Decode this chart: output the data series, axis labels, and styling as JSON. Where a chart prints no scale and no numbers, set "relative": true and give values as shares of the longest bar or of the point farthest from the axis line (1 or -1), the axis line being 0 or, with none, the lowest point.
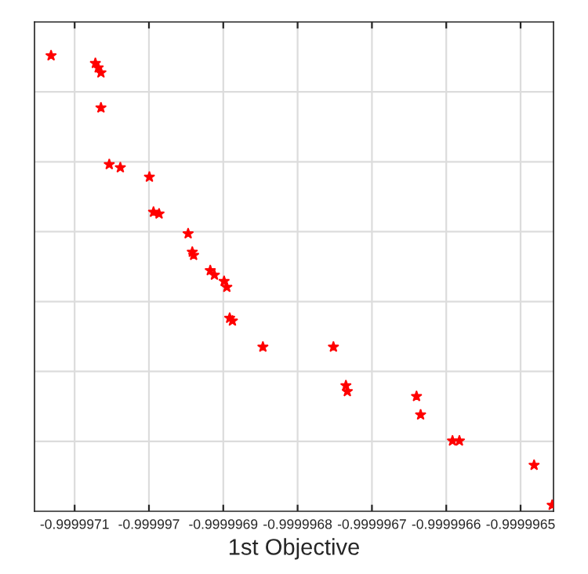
{
  "chart_data": {
    "type": "scatter",
    "xlabel": "1st Objective",
    "relative": true,
    "grid": true,
    "marker": "star",
    "xlim": [
      -0.999997154,
      -0.9999964557
    ],
    "xticks": [
      -0.9999971,
      -0.999997,
      -0.9999969,
      -0.9999968,
      -0.9999967,
      -0.9999966,
      -0.9999965
    ],
    "series": [
      {
        "color": "#ff0000",
        "x": [
          -0.9999971317,
          -0.9999970721,
          -0.9999970683,
          -0.9999970646,
          -0.9999970646,
          -0.9999970534,
          -0.9999970385,
          -0.9999969994,
          -0.9999969939,
          -0.9999969864,
          -0.9999969473,
          -0.9999969417,
          -0.9999969399,
          -0.9999969175,
          -0.9999969119,
          -0.9999968989,
          -0.9999968952,
          -0.9999968914,
          -0.9999968877,
          -0.9999968467,
          -0.9999967518,
          -0.999996735,
          -0.9999967331,
          -0.99999664,
          -0.9999966345,
          -0.9999965916,
          -0.9999965823,
          -0.9999964818,
          -0.9999964575
        ],
        "values": [
          1,
          0.983,
          0.973,
          0.962,
          0.884,
          0.758,
          0.751,
          0.73,
          0.652,
          0.648,
          0.604,
          0.563,
          0.556,
          0.522,
          0.512,
          0.498,
          0.485,
          0.416,
          0.41,
          0.352,
          0.352,
          0.266,
          0.253,
          0.242,
          0.201,
          0.143,
          0.143,
          0.089,
          0
        ]
      }
    ]
  }
}
